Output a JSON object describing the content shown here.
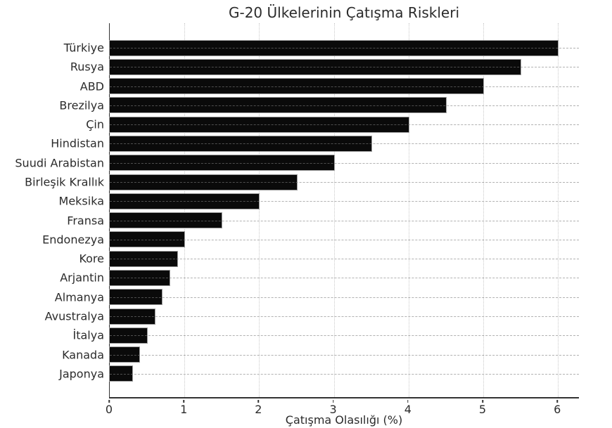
{
  "chart_data": {
    "type": "bar",
    "orientation": "horizontal",
    "title": "G-20 Ülkelerinin Çatışma Riskleri",
    "xlabel": "Çatışma Olasılığı (%)",
    "ylabel": "",
    "categories": [
      "Türkiye",
      "Rusya",
      "ABD",
      "Brezilya",
      "Çin",
      "Hindistan",
      "Suudi Arabistan",
      "Birleşik Krallık",
      "Meksika",
      "Fransa",
      "Endonezya",
      "Kore",
      "Arjantin",
      "Almanya",
      "Avustralya",
      "İtalya",
      "Kanada",
      "Japonya"
    ],
    "values": [
      6.0,
      5.5,
      5.0,
      4.5,
      4.0,
      3.5,
      3.0,
      2.5,
      2.0,
      1.5,
      1.0,
      0.9,
      0.8,
      0.7,
      0.6,
      0.5,
      0.4,
      0.3
    ],
    "xticks": [
      0,
      1,
      2,
      3,
      4,
      5,
      6
    ],
    "xlim": [
      0,
      6.29
    ],
    "grid": true,
    "legend": "none",
    "bar_color": "#0a0a0a",
    "background_color": "#ffffff",
    "text_color": "#2b2b2b",
    "gridline_color": "#c9c9c9"
  }
}
